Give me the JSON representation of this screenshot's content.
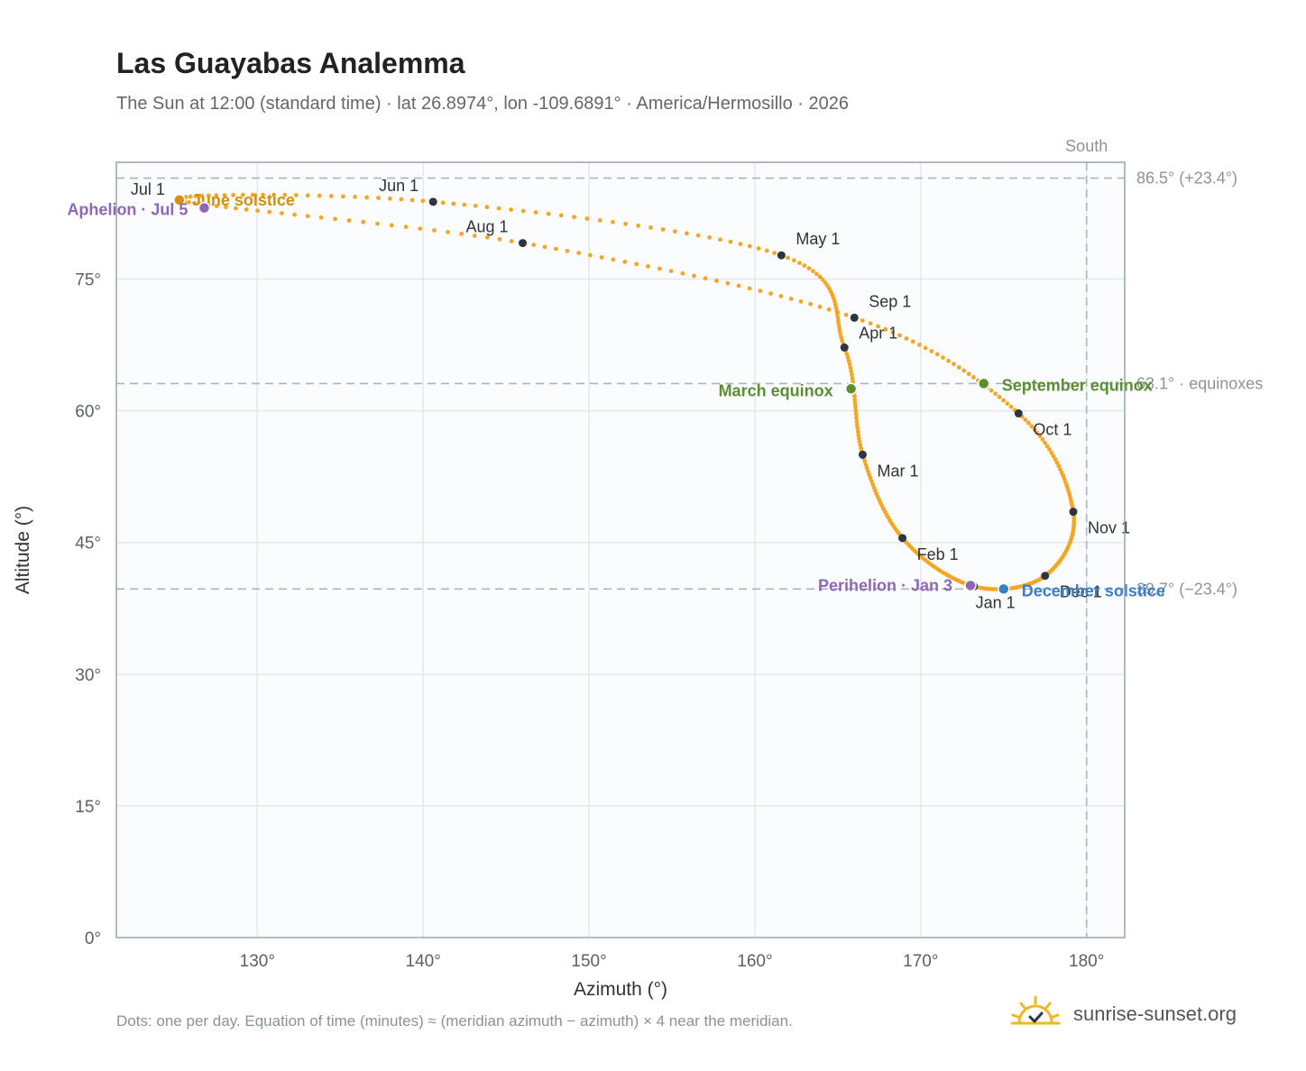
{
  "title": "Las Guayabas Analemma",
  "subtitle": "The Sun at 12:00 (standard time) · lat 26.8974°, lon -109.6891° · America/Hermosillo · 2026",
  "footnote": "Dots: one per day. Equation of time (minutes) ≈ (meridian azimuth − azimuth) × 4 near the meridian.",
  "brand": {
    "name": "sunrise-sunset.org",
    "icon": "sun-logo-icon"
  },
  "colors": {
    "path": "#f5a623",
    "month": "#2d3540",
    "june": "#d4900a",
    "equinox": "#5a8f2e",
    "december": "#3b7ec4",
    "aphelion": "#8e67b6",
    "grid": "#e4e8ec",
    "frame": "#9aa4ae",
    "plot_bg": "#fafcfe",
    "ref": "#a9b5bf"
  },
  "chart_data": {
    "type": "scatter",
    "xlabel": "Azimuth (°)",
    "ylabel": "Altitude (°)",
    "xlim": [
      121.5,
      182.3
    ],
    "ylim": [
      0,
      88.3
    ],
    "x_ticks": [
      130,
      140,
      150,
      160,
      170,
      180
    ],
    "x_tick_labels": [
      "130°",
      "140°",
      "150°",
      "160°",
      "170°",
      "180°"
    ],
    "y_ticks": [
      0,
      15,
      30,
      45,
      60,
      75
    ],
    "y_tick_labels": [
      "0°",
      "15°",
      "30°",
      "45°",
      "60°",
      "75°"
    ],
    "grid": true,
    "reference_lines": {
      "south": {
        "azimuth": 180,
        "label": "South"
      },
      "max_alt": {
        "altitude": 86.5,
        "label": "86.5° (+23.4°)"
      },
      "equinox_alt": {
        "altitude": 63.1,
        "label": "63.1° · equinoxes"
      },
      "min_alt": {
        "altitude": 39.7,
        "label": "39.7° (−23.4°)"
      }
    },
    "month_markers": [
      {
        "label": "Jan 1",
        "azimuth": 173.2,
        "altitude": 40.0
      },
      {
        "label": "Feb 1",
        "azimuth": 168.9,
        "altitude": 45.5
      },
      {
        "label": "Mar 1",
        "azimuth": 166.5,
        "altitude": 55.0
      },
      {
        "label": "Apr 1",
        "azimuth": 165.4,
        "altitude": 67.2
      },
      {
        "label": "May 1",
        "azimuth": 161.6,
        "altitude": 77.7
      },
      {
        "label": "Jun 1",
        "azimuth": 140.6,
        "altitude": 83.8
      },
      {
        "label": "Jul 1",
        "azimuth": 125.3,
        "altitude": 84.0
      },
      {
        "label": "Aug 1",
        "azimuth": 146.0,
        "altitude": 79.1
      },
      {
        "label": "Sep 1",
        "azimuth": 166.0,
        "altitude": 70.6
      },
      {
        "label": "Oct 1",
        "azimuth": 175.9,
        "altitude": 59.7
      },
      {
        "label": "Nov 1",
        "azimuth": 179.2,
        "altitude": 48.5
      },
      {
        "label": "Dec 1",
        "azimuth": 177.5,
        "altitude": 41.2
      }
    ],
    "events": [
      {
        "label": "June solstice",
        "azimuth": 125.3,
        "altitude": 84.0,
        "color": "#d4900a"
      },
      {
        "label": "Aphelion · Jul 5",
        "azimuth": 126.8,
        "altitude": 83.1,
        "color": "#8e67b6"
      },
      {
        "label": "March equinox",
        "azimuth": 165.8,
        "altitude": 62.5,
        "color": "#5a8f2e"
      },
      {
        "label": "September equinox",
        "azimuth": 173.8,
        "altitude": 63.1,
        "color": "#5a8f2e"
      },
      {
        "label": "Perihelion · Jan 3",
        "azimuth": 173.0,
        "altitude": 40.1,
        "color": "#8e67b6"
      },
      {
        "label": "December solstice",
        "azimuth": 175.0,
        "altitude": 39.7,
        "color": "#3b7ec4"
      }
    ]
  }
}
